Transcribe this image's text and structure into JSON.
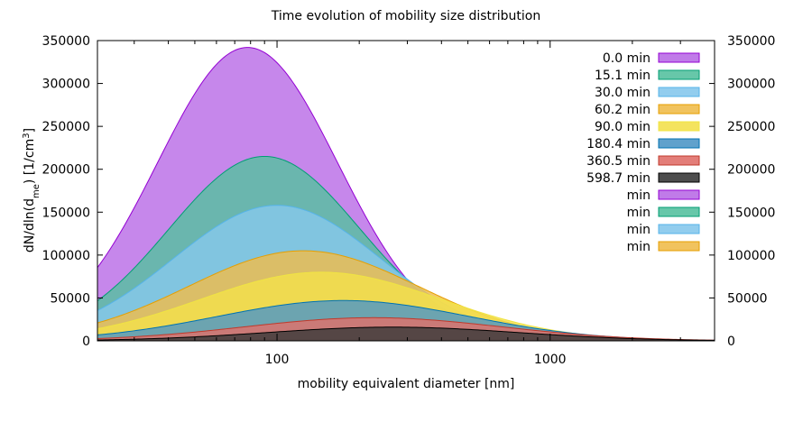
{
  "chart_data": {
    "type": "area",
    "title": "Time evolution of mobility size distribution",
    "xlabel": "mobility equivalent diameter [nm]",
    "ylabel_parts": {
      "a": "dN/dln(d",
      "sub": "me",
      "b": ") [1/cm",
      "sup": "3",
      "c": "]"
    },
    "x_scale": "log",
    "xlim": [
      22,
      4000
    ],
    "ylim": [
      0,
      350000
    ],
    "x_ticks": [
      100,
      1000
    ],
    "x_tick_labels": [
      "100",
      "1000"
    ],
    "y_ticks": [
      0,
      50000,
      100000,
      150000,
      200000,
      250000,
      300000,
      350000
    ],
    "y_tick_labels": [
      "0",
      "50000",
      "100000",
      "150000",
      "200000",
      "250000",
      "300000",
      "350000"
    ],
    "y2_tick_labels": [
      "0",
      "50000",
      "100000",
      "150000",
      "200000",
      "250000",
      "300000",
      "350000"
    ],
    "grid": false,
    "legend_position": "top-right",
    "series": [
      {
        "name": "0.0 min",
        "color": "#b96de6",
        "stroke": "#9400d3",
        "peak_x": 78,
        "peak_y": 342000,
        "sigma": 0.33
      },
      {
        "name": "15.1 min",
        "color": "#56c1a0",
        "stroke": "#009e73",
        "peak_x": 90,
        "peak_y": 215000,
        "sigma": 0.35
      },
      {
        "name": "30.0 min",
        "color": "#86c8ec",
        "stroke": "#56b4e9",
        "peak_x": 100,
        "peak_y": 158000,
        "sigma": 0.38
      },
      {
        "name": "60.2 min",
        "color": "#efbc4c",
        "stroke": "#e69f00",
        "peak_x": 125,
        "peak_y": 105000,
        "sigma": 0.42
      },
      {
        "name": "90.0 min",
        "color": "#f3e04c",
        "stroke": "#f0e442",
        "peak_x": 145,
        "peak_y": 80000,
        "sigma": 0.44
      },
      {
        "name": "180.4 min",
        "color": "#4f97c6",
        "stroke": "#0072b2",
        "peak_x": 175,
        "peak_y": 47000,
        "sigma": 0.46
      },
      {
        "name": "360.5 min",
        "color": "#e0706a",
        "stroke": "#c0392b",
        "peak_x": 225,
        "peak_y": 27000,
        "sigma": 0.47
      },
      {
        "name": "598.7 min",
        "color": "#3a3a3a",
        "stroke": "#000000",
        "peak_x": 265,
        "peak_y": 16000,
        "sigma": 0.46
      }
    ],
    "extra_legend": [
      {
        "name": "min",
        "color": "#b96de6",
        "stroke": "#9400d3"
      },
      {
        "name": "min",
        "color": "#56c1a0",
        "stroke": "#009e73"
      },
      {
        "name": "min",
        "color": "#86c8ec",
        "stroke": "#56b4e9"
      },
      {
        "name": "min",
        "color": "#efbc4c",
        "stroke": "#e69f00"
      }
    ]
  }
}
